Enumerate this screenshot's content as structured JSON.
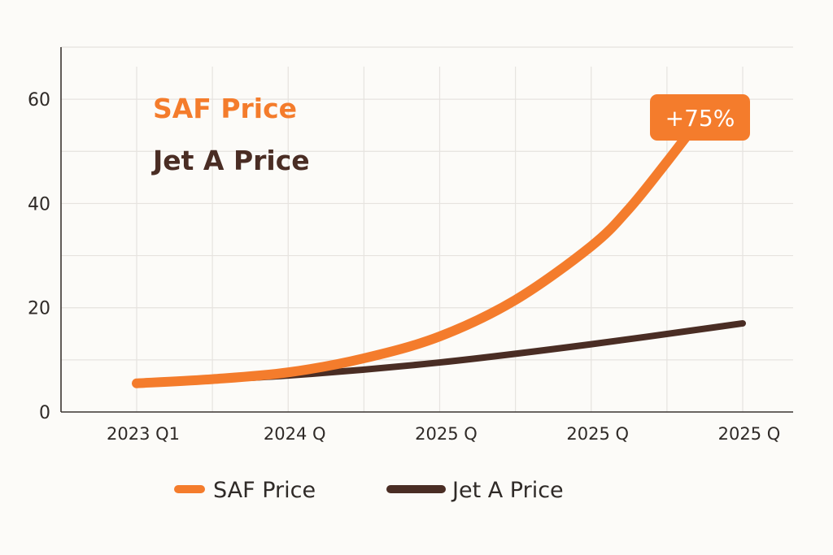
{
  "chart_data": {
    "type": "line",
    "title": "",
    "xlabel": "",
    "ylabel": "",
    "ylim": [
      0,
      70
    ],
    "y_ticks": [
      0,
      20,
      40,
      60
    ],
    "grid": true,
    "categories": [
      "2023 Q1",
      "2024 Q",
      "2025 Q",
      "2025 Q",
      "2025 Q"
    ],
    "series": [
      {
        "name": "SAF Price",
        "color": "#f47c2c",
        "x": [
          0,
          0.5,
          1,
          1.5,
          2,
          2.5,
          3,
          3.25,
          3.5,
          3.75
        ],
        "values": [
          5.5,
          6.3,
          7.6,
          10.3,
          14.5,
          21.5,
          31.8,
          39,
          48,
          57.5
        ]
      },
      {
        "name": "Jet A Price",
        "color": "#4a2d24",
        "x": [
          0,
          1,
          2,
          3,
          4
        ],
        "values": [
          5.5,
          7,
          9.5,
          13,
          17
        ]
      }
    ],
    "annotations": [
      {
        "text": "+75%",
        "series": "SAF Price",
        "color": "#f47c2c"
      }
    ],
    "inline_labels": [
      {
        "text": "SAF Price",
        "color": "#f47c2c"
      },
      {
        "text": "Jet A Price",
        "color": "#4a2d24"
      }
    ],
    "legend": {
      "placement": "bottom",
      "items": [
        {
          "label": "SAF Price",
          "color": "#f47c2c"
        },
        {
          "label": "Jet A Price",
          "color": "#4a2d24"
        }
      ]
    }
  }
}
